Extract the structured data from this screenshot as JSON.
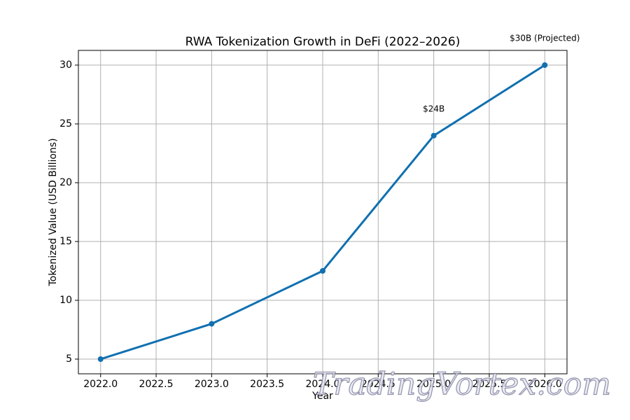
{
  "chart_data": {
    "type": "line",
    "title": "RWA Tokenization Growth in DeFi (2022–2026)",
    "x_label": "Year",
    "y_label": "Tokenized Value (USD Billions)",
    "x": [
      2022,
      2023,
      2024,
      2025,
      2026
    ],
    "values": [
      5,
      8,
      12.5,
      24,
      30
    ],
    "value_labels": [
      null,
      null,
      null,
      "$24B",
      "$30B (Projected)"
    ],
    "color": "#1070b0",
    "xlim": [
      2021.8,
      2026.2
    ],
    "ylim": [
      3.75,
      31.25
    ],
    "xticks": [
      {
        "value": 2022,
        "label": "2022.0"
      },
      2022.5,
      {
        "value": 2023,
        "label": "2023.0"
      },
      2023.5,
      {
        "value": 2024,
        "label": "2024.0"
      },
      2024.5,
      {
        "value": 2025,
        "label": "2025.0"
      },
      2025.5,
      {
        "value": 2026,
        "label": "2026.0"
      }
    ],
    "yticks": [
      5,
      10,
      15,
      20,
      25,
      30
    ],
    "grid": true,
    "watermark": "TradingVortex.com"
  }
}
